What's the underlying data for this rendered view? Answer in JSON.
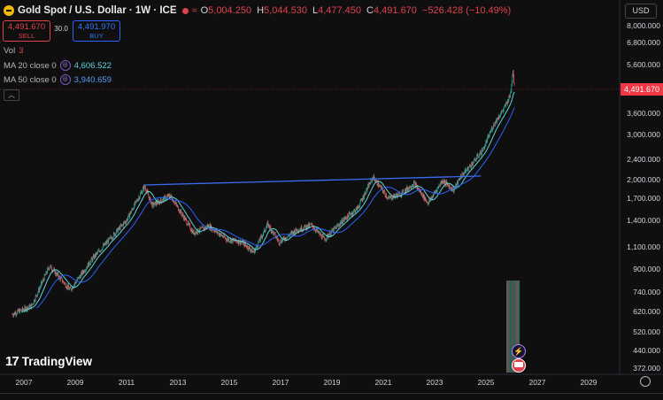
{
  "header": {
    "title": "Gold Spot / U.S. Dollar · 1W · ICE",
    "ohlc": [
      {
        "k": "O",
        "v": "5,004.250"
      },
      {
        "k": "H",
        "v": "5,044.530"
      },
      {
        "k": "L",
        "v": "4,477.450"
      },
      {
        "k": "C",
        "v": "4,491.670"
      }
    ],
    "change": "−526.428 (−10.49%)"
  },
  "trade": {
    "sell_price": "4,491.670",
    "sell_label": "SELL",
    "spread": "30.0",
    "buy_price": "4,491.970",
    "buy_label": "BUY"
  },
  "indicators": {
    "vol_label": "Vol",
    "vol_value": "3",
    "ma20_label": "MA 20 close 0",
    "ma20_value": "4,606.522",
    "ma50_label": "MA 50 close 0",
    "ma50_value": "3,940.659"
  },
  "currency": "USD",
  "last_price": "4,491.670",
  "brand": "TradingView",
  "colors": {
    "up": "#26a69a",
    "down": "#ef5350",
    "ma20": "#5fd3df",
    "ma50": "#2962ff",
    "trendline": "#3b6cf0",
    "price_tag": "#f23645"
  },
  "chart_data": {
    "type": "candlestick",
    "interval": "1W",
    "log_scale": true,
    "x_ticks": [
      "2007",
      "2009",
      "2011",
      "2013",
      "2015",
      "2017",
      "2019",
      "2021",
      "2023",
      "2025",
      "2027",
      "2029"
    ],
    "y_ticks": [
      "8,000.000",
      "6,800.000",
      "5,600.000",
      "4,491.670",
      "3,600.000",
      "3,000.000",
      "2,400.000",
      "2,000.000",
      "1,700.000",
      "1,400.000",
      "1,100.000",
      "900.000",
      "740.000",
      "620.000",
      "520.000",
      "440.000",
      "372.000"
    ],
    "ylim": [
      350,
      9000
    ],
    "price_path": [
      [
        2006.5,
        600
      ],
      [
        2007.3,
        650
      ],
      [
        2008.0,
        930
      ],
      [
        2008.8,
        750
      ],
      [
        2009.7,
        1000
      ],
      [
        2010.5,
        1230
      ],
      [
        2011.0,
        1400
      ],
      [
        2011.7,
        1900
      ],
      [
        2012.0,
        1600
      ],
      [
        2012.7,
        1750
      ],
      [
        2013.3,
        1400
      ],
      [
        2013.6,
        1250
      ],
      [
        2014.2,
        1330
      ],
      [
        2014.9,
        1180
      ],
      [
        2015.5,
        1150
      ],
      [
        2015.95,
        1050
      ],
      [
        2016.5,
        1350
      ],
      [
        2016.95,
        1150
      ],
      [
        2017.6,
        1280
      ],
      [
        2018.2,
        1340
      ],
      [
        2018.7,
        1180
      ],
      [
        2019.5,
        1420
      ],
      [
        2020.0,
        1560
      ],
      [
        2020.6,
        2060
      ],
      [
        2021.2,
        1700
      ],
      [
        2021.7,
        1780
      ],
      [
        2022.2,
        1950
      ],
      [
        2022.75,
        1630
      ],
      [
        2023.3,
        2000
      ],
      [
        2023.75,
        1830
      ],
      [
        2024.0,
        2060
      ],
      [
        2024.5,
        2350
      ],
      [
        2024.9,
        2650
      ],
      [
        2025.3,
        3300
      ],
      [
        2025.7,
        3800
      ],
      [
        2025.95,
        4300
      ],
      [
        2026.05,
        5400
      ],
      [
        2026.12,
        4491.67
      ]
    ],
    "series": [
      {
        "name": "MA 20 close 0",
        "last": 4606.522
      },
      {
        "name": "MA 50 close 0",
        "last": 3940.659
      }
    ],
    "trendline": [
      [
        2011.7,
        1920
      ],
      [
        2024.8,
        2080
      ]
    ]
  }
}
